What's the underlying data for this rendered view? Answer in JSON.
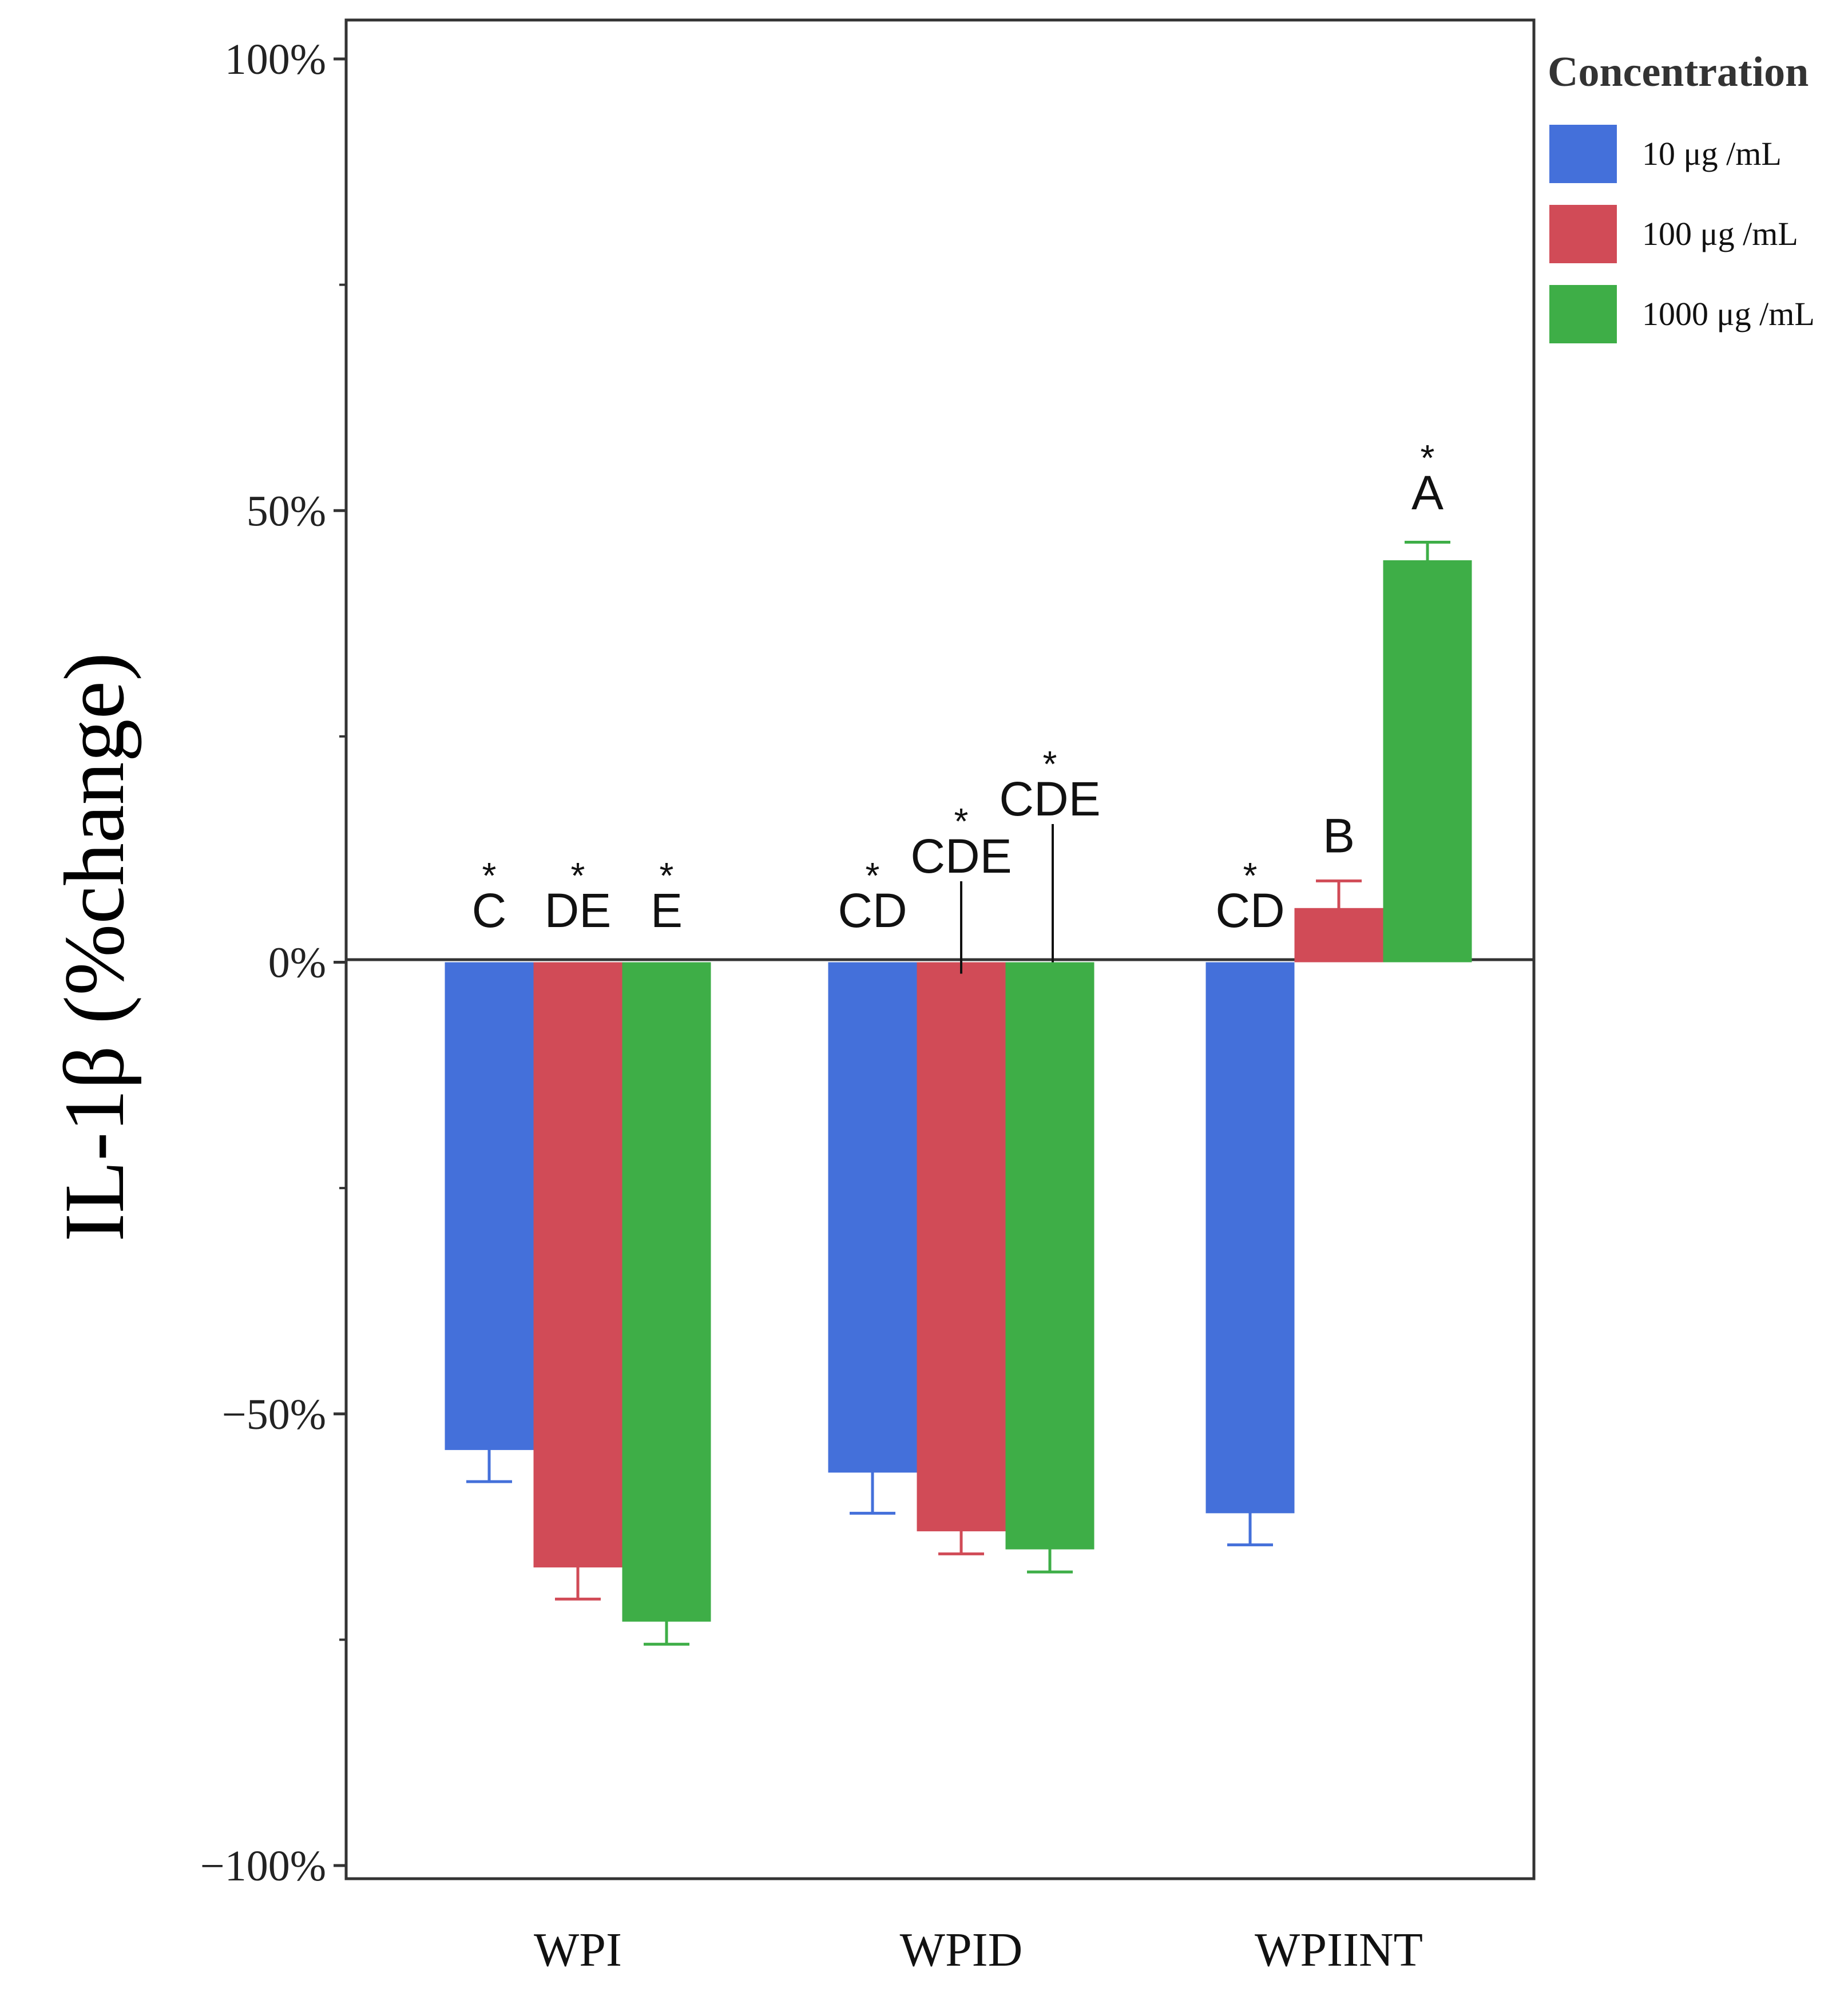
{
  "chart_data": {
    "type": "bar",
    "title": "",
    "xlabel": "",
    "ylabel": "IL-1β (%change)",
    "ylim": [
      -100,
      100
    ],
    "yticks": [
      100,
      50,
      0,
      -50,
      -100
    ],
    "ytick_labels": [
      "100%",
      "50%",
      "0%",
      "−50%",
      "−100%"
    ],
    "categories": [
      "WPI",
      "WPID",
      "WPIINT"
    ],
    "legend_title": "Concentration",
    "legend_position": "top-right",
    "series": [
      {
        "name": "10 μg /mL",
        "color": "#4470DA",
        "values": [
          -54,
          -56.5,
          -61
        ],
        "errors": [
          3.5,
          4.5,
          3.5
        ],
        "stars": [
          "*",
          "*",
          "*"
        ],
        "letters": [
          "C",
          "CD",
          "CD"
        ]
      },
      {
        "name": "100 μg /mL",
        "color": "#D14B57",
        "values": [
          -67,
          -63,
          6
        ],
        "errors": [
          3.5,
          2.5,
          3
        ],
        "stars": [
          "*",
          "*",
          ""
        ],
        "letters": [
          "DE",
          "CDE",
          "B"
        ]
      },
      {
        "name": "1000 μg /mL",
        "color": "#3EAE47",
        "values": [
          -73,
          -65,
          44.5
        ],
        "errors": [
          2.5,
          2.5,
          2
        ],
        "stars": [
          "*",
          "*",
          "*"
        ],
        "letters": [
          "E",
          "CDE",
          "A"
        ]
      }
    ]
  }
}
